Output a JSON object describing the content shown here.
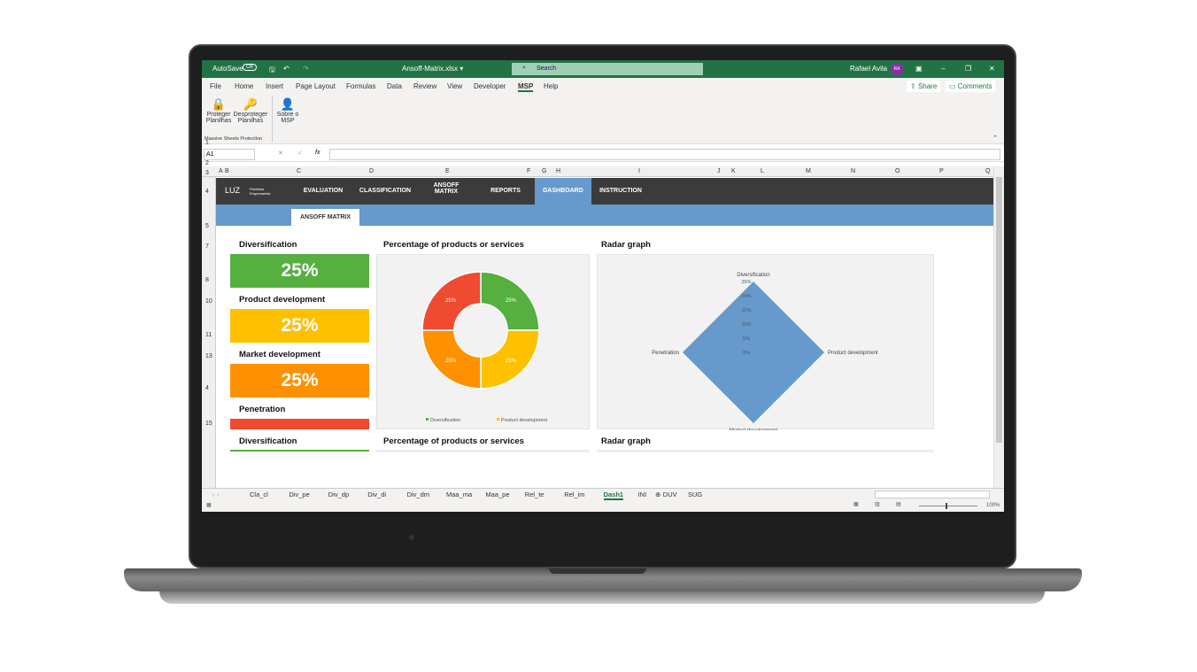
{
  "window": {
    "autosave": "AutoSave",
    "autosave_state": "Off",
    "filename": "Ansoff-Matrix.xlsx ▾",
    "search_placeholder": "Search",
    "user": "Rafael Avila",
    "user_initials": "RA"
  },
  "menu": [
    "File",
    "Home",
    "Insert",
    "Page Layout",
    "Formulas",
    "Data",
    "Review",
    "View",
    "Developer",
    "MSP",
    "Help"
  ],
  "share": "Share",
  "comments": "Comments",
  "ribbon": {
    "protect": "Proteger Planilhas",
    "unprotect": "Desproteger Planilhas",
    "about": "Sobre o MSP",
    "group": "Massive Sheets Protection"
  },
  "formula": {
    "namebox": "A1",
    "fx": "fx"
  },
  "columns": [
    "A",
    "B",
    "C",
    "D",
    "E",
    "F",
    "G",
    "H",
    "I",
    "J",
    "K",
    "L",
    "M",
    "N",
    "O",
    "P",
    "Q"
  ],
  "rows": [
    "1",
    "2",
    "3",
    "4",
    "5",
    "7",
    "8",
    "10",
    "11",
    "13",
    "4",
    "15"
  ],
  "nav": {
    "logo": "LUZ",
    "logo_sub": "Planilhas Empresariais",
    "items": [
      "EVALUATION",
      "CLASSIFICATION",
      "ANSOFF MATRIX",
      "REPORTS",
      "DASHBOARD",
      "INSTRUCTION"
    ],
    "subtab": "ANSOFF MATRIX"
  },
  "cards": [
    {
      "label": "Diversification",
      "value": "25%",
      "color": "#55b03f"
    },
    {
      "label": "Product development",
      "value": "25%",
      "color": "#ffc000"
    },
    {
      "label": "Market development",
      "value": "25%",
      "color": "#ff9100"
    },
    {
      "label": "Penetration",
      "value": "",
      "color": "#f04a30"
    }
  ],
  "titles": {
    "donut": "Percentage of products or services",
    "radar": "Radar graph",
    "repeat_card": "Diversification"
  },
  "chart_data": [
    {
      "type": "pie",
      "title": "Percentage of products or services",
      "categories": [
        "Diversification",
        "Product development",
        "Market development",
        "Penetration"
      ],
      "values": [
        25,
        25,
        25,
        25
      ],
      "labels": [
        "25%",
        "25%",
        "25%",
        "25%"
      ],
      "colors": [
        "#55b03f",
        "#ffc000",
        "#ff9100",
        "#f04a30"
      ],
      "legend": [
        "Diversification",
        "Product development"
      ],
      "legend_placement": "bottom"
    },
    {
      "type": "radar",
      "title": "Radar graph",
      "axes": [
        "Diversification",
        "Product development",
        "Market development",
        "Penetration"
      ],
      "values": [
        25,
        25,
        25,
        25
      ],
      "ticks": [
        "0%",
        "5%",
        "10%",
        "15%",
        "20%",
        "25%"
      ],
      "range": [
        0,
        25
      ],
      "color": "#6699cc"
    }
  ],
  "sheet_tabs": [
    "Cla_cl",
    "Div_pe",
    "Div_dp",
    "Div_di",
    "Div_dm",
    "Maa_ma",
    "Maa_pe",
    "Rel_te",
    "Rel_im",
    "Dash1",
    "INI",
    "DUV",
    "SUG"
  ],
  "active_tab": "Dash1",
  "zoom": "100%"
}
